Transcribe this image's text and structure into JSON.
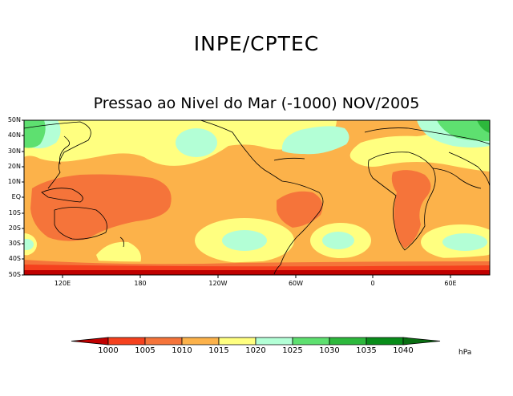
{
  "header": {
    "institution": "INPE/CPTEC",
    "subtitle": "Pressao ao Nivel do Mar (-1000) NOV/2005"
  },
  "map": {
    "lat_labels": [
      "50N",
      "40N",
      "30N",
      "20N",
      "10N",
      "EQ",
      "10S",
      "20S",
      "30S",
      "40S",
      "50S"
    ],
    "lon_labels": [
      "120E",
      "180",
      "120W",
      "60W",
      "0",
      "60E"
    ]
  },
  "colorbar": {
    "labels": [
      "1000",
      "1005",
      "1010",
      "1015",
      "1020",
      "1025",
      "1030",
      "1035",
      "1040"
    ],
    "colors": [
      "#c00000",
      "#f5411e",
      "#f5743a",
      "#fcb24a",
      "#ffff80",
      "#b3ffd6",
      "#5ee070",
      "#2db83c",
      "#088c19",
      "#0a6e12"
    ],
    "unit": "hPa"
  }
}
